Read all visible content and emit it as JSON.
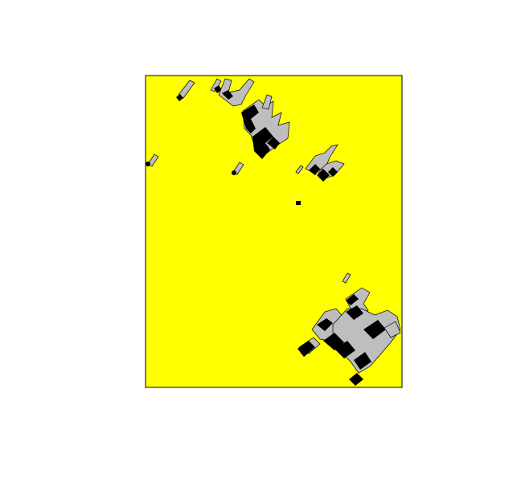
{
  "colors": {
    "background": "#ffffff",
    "panel_fill": "#ffff00",
    "panel_border": "#000000",
    "shape_fill_light": "#bebebe",
    "shape_fill_dark": "#000000"
  },
  "legend": [
    {
      "label": "",
      "color": "#bebebe"
    },
    {
      "label": "",
      "color": "#000000"
    }
  ]
}
